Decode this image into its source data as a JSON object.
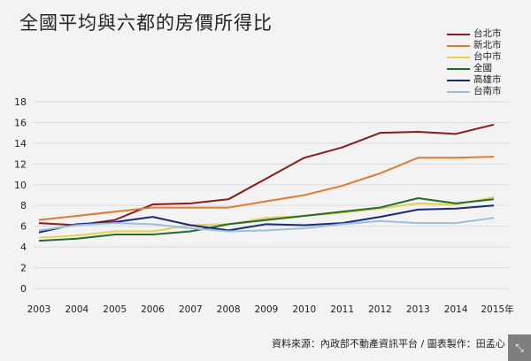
{
  "title": "全國平均與六都的房價所得比",
  "source": "資料來源：內政部不動產資訊平台 / 圖表製作：田孟心",
  "expand_icon": "expand-icon",
  "chart_data": {
    "type": "line",
    "title": "全國平均與六都的房價所得比",
    "x": [
      "2003",
      "2004",
      "2005",
      "2006",
      "2007",
      "2008",
      "2009",
      "2010",
      "2011",
      "2012",
      "2013",
      "2014",
      "2015年"
    ],
    "ylim": [
      0,
      18
    ],
    "yticks": [
      "0",
      "2",
      "4",
      "6",
      "8",
      "10",
      "12",
      "14",
      "16",
      "18"
    ],
    "grid": true,
    "legend": "top-right",
    "series": [
      {
        "name": "台北市",
        "color": "#8b1a1a",
        "values": [
          6.3,
          6.1,
          6.6,
          8.1,
          8.2,
          8.6,
          10.6,
          12.6,
          13.6,
          15.0,
          15.1,
          14.9,
          15.8
        ]
      },
      {
        "name": "新北市",
        "color": "#e07b30",
        "values": [
          6.6,
          7.0,
          7.4,
          7.8,
          7.8,
          7.8,
          8.4,
          9.0,
          9.9,
          11.1,
          12.6,
          12.6,
          12.7
        ]
      },
      {
        "name": "台中市",
        "color": "#e8cf50",
        "values": [
          4.9,
          5.1,
          5.5,
          5.5,
          6.1,
          6.2,
          6.8,
          7.0,
          7.3,
          7.7,
          8.2,
          8.1,
          8.8
        ]
      },
      {
        "name": "全國",
        "color": "#1e6e2a",
        "values": [
          4.6,
          4.8,
          5.2,
          5.2,
          5.5,
          6.2,
          6.6,
          7.0,
          7.4,
          7.8,
          8.7,
          8.2,
          8.6
        ]
      },
      {
        "name": "高雄市",
        "color": "#1a2a78",
        "values": [
          5.4,
          6.2,
          6.4,
          6.9,
          6.1,
          5.6,
          6.2,
          6.1,
          6.3,
          6.9,
          7.6,
          7.7,
          8.0
        ]
      },
      {
        "name": "台南市",
        "color": "#9dc0d8",
        "values": [
          5.6,
          6.1,
          6.3,
          6.2,
          5.8,
          5.5,
          5.6,
          5.8,
          6.2,
          6.5,
          6.3,
          6.3,
          6.8
        ]
      }
    ]
  }
}
